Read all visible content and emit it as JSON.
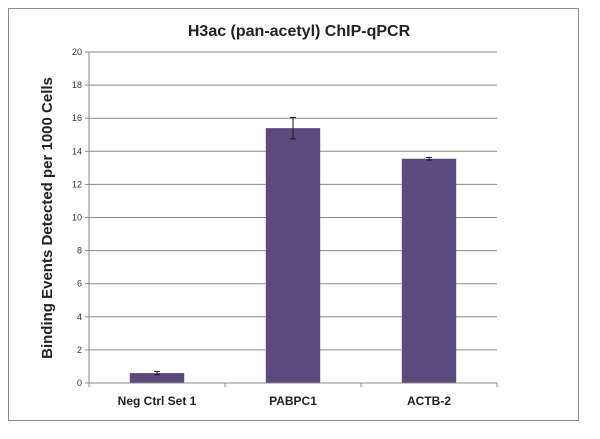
{
  "chart_data": {
    "type": "bar",
    "title": "H3ac (pan-acetyl) ChIP-qPCR",
    "xlabel": "",
    "ylabel": "Binding Events Detected per 1000 Cells",
    "categories": [
      "Neg Ctrl Set 1",
      "PABPC1",
      "ACTB-2"
    ],
    "values": [
      0.6,
      15.4,
      13.55
    ],
    "errors": [
      0.1,
      0.65,
      0.08
    ],
    "ylim": [
      0,
      20
    ],
    "yticks": [
      0,
      2,
      4,
      6,
      8,
      10,
      12,
      14,
      16,
      18,
      20
    ],
    "grid": true,
    "legend": "none",
    "bar_color": "#5e497d"
  }
}
